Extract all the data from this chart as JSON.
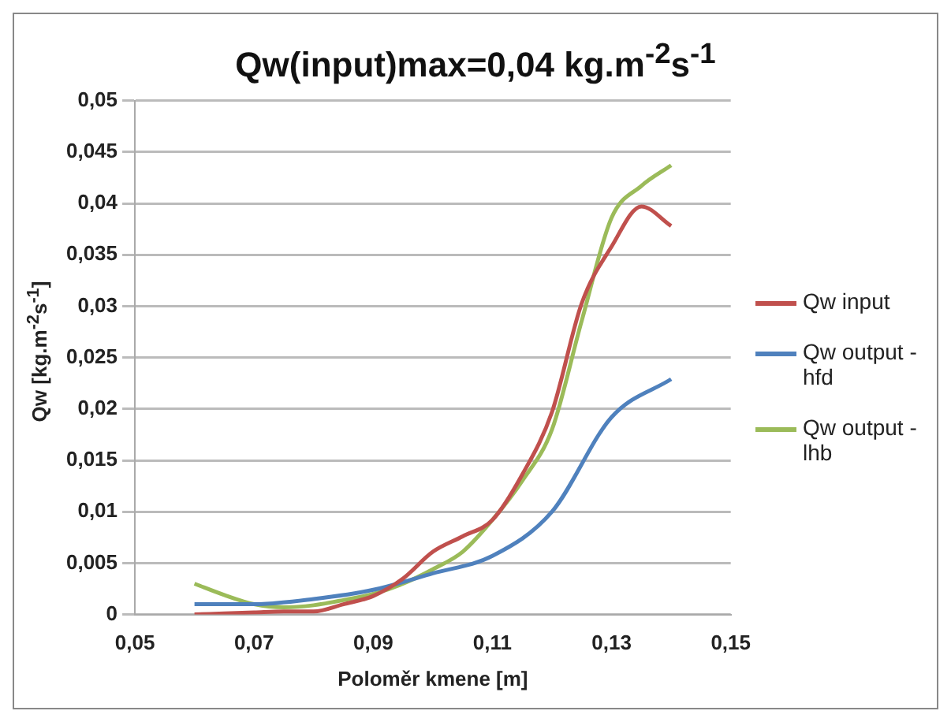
{
  "chart_data": {
    "type": "line",
    "title": "Qw(input)max=0,04 kg.m$^{-2}$s$^{-1}$",
    "xlabel": "Poloměr kmene [m]",
    "ylabel": "Qw [kg.m$^{-2}$s$^{-1}$]",
    "x": [
      0.06,
      0.065,
      0.07,
      0.075,
      0.08,
      0.085,
      0.09,
      0.095,
      0.1,
      0.105,
      0.11,
      0.115,
      0.12,
      0.125,
      0.13,
      0.135,
      0.14
    ],
    "series": [
      {
        "name": "Qw input",
        "color": "#c0504d",
        "values": [
          0,
          0.0001,
          0.0002,
          0.0003,
          0.0003,
          0.001,
          0.0018,
          0.0035,
          0.0061,
          0.0076,
          0.0092,
          0.0136,
          0.0197,
          0.0303,
          0.0358,
          0.0397,
          0.0378
        ]
      },
      {
        "name": "Qw output - hfd",
        "color": "#4f81bd",
        "x": [
          0.06,
          0.07,
          0.08,
          0.09,
          0.1,
          0.11,
          0.12,
          0.13,
          0.14
        ],
        "values": [
          0.001,
          0.001,
          0.0015,
          0.0024,
          0.004,
          0.0057,
          0.01,
          0.0192,
          0.0229
        ]
      },
      {
        "name": "Qw output - lhb",
        "color": "#9bbb59",
        "values": [
          0.003,
          0.0019,
          0.001,
          0.0007,
          0.0009,
          0.0014,
          0.002,
          0.003,
          0.0044,
          0.0061,
          0.0092,
          0.013,
          0.018,
          0.0286,
          0.0386,
          0.0417,
          0.0437
        ]
      }
    ],
    "xlim": [
      0.05,
      0.15
    ],
    "xticks": [
      {
        "value": 0.05,
        "label": "0,05"
      },
      {
        "value": 0.07,
        "label": "0,07"
      },
      {
        "value": 0.09,
        "label": "0,09"
      },
      {
        "value": 0.11,
        "label": "0,11"
      },
      {
        "value": 0.13,
        "label": "0,13"
      },
      {
        "value": 0.15,
        "label": "0,15"
      }
    ],
    "ylim": [
      0,
      0.05
    ],
    "yticks": [
      {
        "value": 0,
        "label": "0"
      },
      {
        "value": 0.005,
        "label": "0,005"
      },
      {
        "value": 0.01,
        "label": "0,01"
      },
      {
        "value": 0.015,
        "label": "0,015"
      },
      {
        "value": 0.02,
        "label": "0,02"
      },
      {
        "value": 0.025,
        "label": "0,025"
      },
      {
        "value": 0.03,
        "label": "0,03"
      },
      {
        "value": 0.035,
        "label": "0,035"
      },
      {
        "value": 0.04,
        "label": "0,04"
      },
      {
        "value": 0.045,
        "label": "0,045"
      },
      {
        "value": 0.05,
        "label": "0,05"
      }
    ],
    "grid": "y",
    "legend": "right",
    "marker": "none",
    "line_style": "solid"
  }
}
